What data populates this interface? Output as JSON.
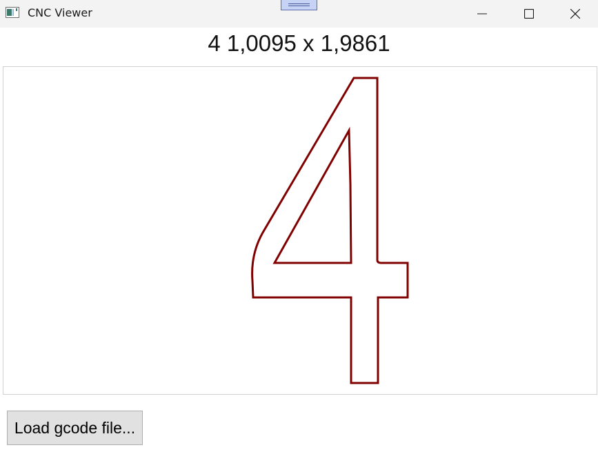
{
  "window": {
    "title": "CNC Viewer",
    "controls": [
      "minimize",
      "maximize",
      "close"
    ]
  },
  "header": {
    "dimensions_text": "4 1,0095 x 1,9861"
  },
  "canvas": {
    "path_color": "#800000",
    "shape": "glyph outline of character '4'"
  },
  "actions": {
    "load_label": "Load gcode file..."
  },
  "colors": {
    "titlebar": "#f3f3f3",
    "path": "#800000",
    "button_face": "#e1e1e1"
  }
}
